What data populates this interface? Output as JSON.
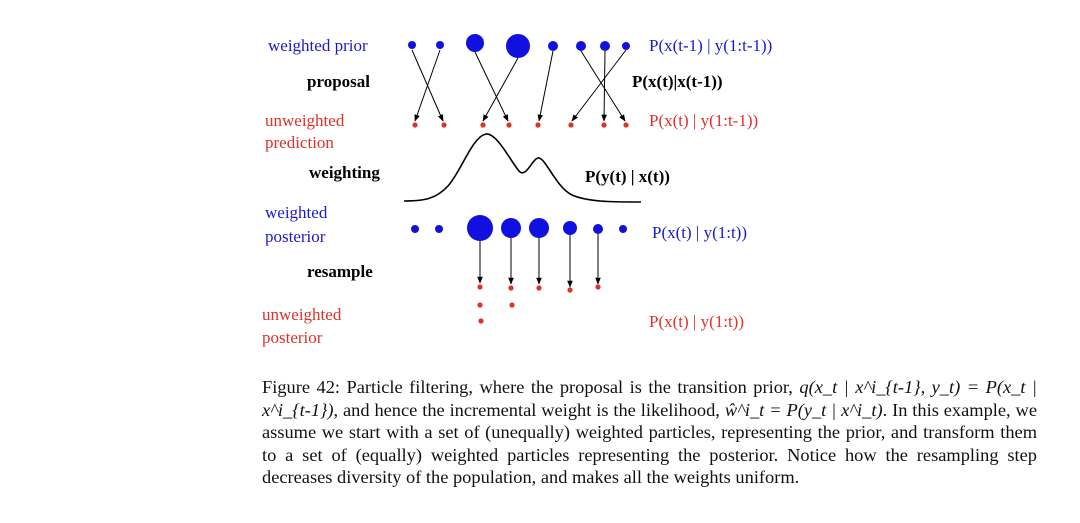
{
  "stages": {
    "weighted_prior": "weighted prior",
    "proposal": "proposal",
    "unweighted_prediction_1": "unweighted",
    "unweighted_prediction_2": "prediction",
    "weighting": "weighting",
    "weighted_posterior_1": "weighted",
    "weighted_posterior_2": "posterior",
    "resample": "resample",
    "unweighted_posterior_1": "unweighted",
    "unweighted_posterior_2": "posterior"
  },
  "distributions": {
    "prior": "P(x(t-1) | y(1:t-1))",
    "transition": "P(x(t)|x(t-1))",
    "prediction": "P(x(t) | y(1:t-1))",
    "likelihood": "P(y(t) | x(t))",
    "posterior_weighted": "P(x(t) | y(1:t))",
    "posterior_unweighted": "P(x(t) | y(1:t))"
  },
  "particles": {
    "prior_weights": [
      1,
      1,
      3,
      4,
      1.5,
      1.5,
      1.5,
      1
    ],
    "posterior_weights": [
      1,
      1,
      4,
      3,
      3,
      2,
      1.5,
      1
    ],
    "resample_counts": [
      0,
      0,
      3,
      2,
      1,
      1,
      1,
      0
    ]
  },
  "colors": {
    "blue": "#1a1acc",
    "red": "#e0302a",
    "black": "#000000"
  },
  "caption": {
    "prefix": "Figure 42: Particle filtering, where the proposal is the transition prior,",
    "eq1": "q(x_t | x^i_{t-1}, y_t) = P(x_t | x^i_{t-1})",
    "mid1": ", and hence the incremental weight is the likelihood,",
    "eq2": "ŵ^i_t = P(y_t | x^i_t)",
    "rest": ". In this example, we assume we start with a set of (unequally) weighted particles, representing the prior, and transform them to a set of (equally) weighted particles representing the posterior. Notice how the resampling step decreases diversity of the population, and makes all the weights uniform."
  }
}
